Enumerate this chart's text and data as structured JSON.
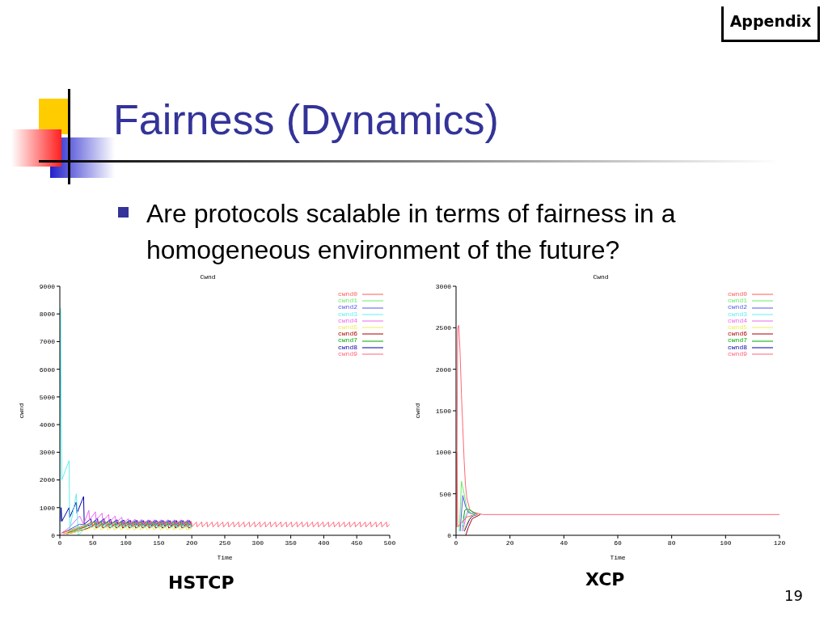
{
  "chart_data": [
    {
      "type": "line",
      "title": "Cwnd",
      "xlabel": "Time",
      "ylabel": "cwnd",
      "xlim": [
        0,
        500
      ],
      "xticks": [
        0,
        50,
        100,
        150,
        200,
        250,
        300,
        350,
        400,
        450,
        500
      ],
      "ylim": [
        0,
        9000
      ],
      "yticks": [
        0,
        1000,
        2000,
        3000,
        4000,
        5000,
        6000,
        7000,
        8000,
        9000
      ],
      "grid": false,
      "legend": "top right",
      "line_style": "solid",
      "annotations": [
        "Appendix",
        "Fairness (Dynamics)",
        "Are protocols scalable in terms of fairness in a homogeneous environment of the future?",
        "HSTCP"
      ],
      "series": [
        {
          "name": "cwnd0",
          "color": "#ff5a5a",
          "x": [
            3,
            20,
            40,
            49,
            50,
            59,
            60,
            69,
            70,
            79,
            80,
            89,
            90,
            99,
            100,
            109,
            110,
            119,
            120,
            129,
            130,
            139,
            140,
            149,
            150,
            159,
            160,
            169,
            170,
            179,
            180,
            189,
            190,
            199,
            200
          ],
          "values": [
            100,
            200,
            350,
            500,
            360,
            500,
            360,
            500,
            360,
            500,
            360,
            500,
            360,
            500,
            360,
            500,
            360,
            500,
            360,
            500,
            360,
            500,
            360,
            500,
            360,
            500,
            360,
            500,
            360,
            500,
            360,
            500,
            360,
            500,
            360
          ]
        },
        {
          "name": "cwnd1",
          "color": "#66ee66",
          "x": [
            6,
            22,
            43,
            52,
            53,
            62,
            63,
            72,
            73,
            82,
            83,
            92,
            93,
            102,
            103,
            112,
            113,
            122,
            123,
            132,
            133,
            142,
            143,
            152,
            153,
            162,
            163,
            172,
            173,
            182,
            183,
            192,
            193,
            200
          ],
          "values": [
            100,
            250,
            420,
            450,
            310,
            450,
            310,
            450,
            310,
            450,
            310,
            450,
            310,
            450,
            310,
            450,
            310,
            450,
            310,
            450,
            310,
            450,
            310,
            450,
            310,
            450,
            310,
            450,
            310,
            450,
            310,
            450,
            310,
            400
          ]
        },
        {
          "name": "cwnd2",
          "color": "#5555ee",
          "x": [
            4,
            10,
            30,
            45,
            55,
            56,
            65,
            66,
            75,
            76,
            85,
            86,
            95,
            96,
            105,
            106,
            115,
            116,
            125,
            126,
            135,
            136,
            145,
            146,
            155,
            156,
            165,
            166,
            175,
            176,
            185,
            186,
            195,
            196,
            200
          ],
          "values": [
            100,
            150,
            400,
            360,
            540,
            380,
            540,
            380,
            540,
            380,
            540,
            380,
            540,
            380,
            540,
            380,
            540,
            380,
            540,
            380,
            540,
            380,
            540,
            380,
            540,
            380,
            540,
            380,
            540,
            380,
            540,
            380,
            540,
            380,
            420
          ]
        },
        {
          "name": "cwnd3",
          "color": "#66eeee",
          "x": [
            0,
            1,
            3,
            14,
            15,
            25,
            28,
            40,
            47,
            48,
            57,
            58,
            67,
            68,
            77,
            78,
            87,
            88,
            97,
            98,
            107,
            108,
            117,
            118,
            127,
            128,
            137,
            138,
            147,
            148,
            157,
            158,
            167,
            168,
            177,
            178,
            187,
            188,
            197,
            198,
            200
          ],
          "values": [
            0,
            8200,
            2000,
            2700,
            200,
            1500,
            0,
            300,
            420,
            280,
            420,
            280,
            420,
            280,
            420,
            280,
            420,
            280,
            420,
            280,
            420,
            280,
            420,
            280,
            420,
            280,
            420,
            280,
            420,
            280,
            420,
            280,
            420,
            280,
            420,
            280,
            420,
            280,
            420,
            280,
            300
          ]
        },
        {
          "name": "cwnd4",
          "color": "#ee66ee",
          "x": [
            2,
            15,
            30,
            36,
            44,
            45,
            54,
            55,
            64,
            65,
            74,
            75,
            84,
            85,
            94,
            95,
            104,
            105,
            114,
            115,
            124,
            125,
            134,
            135,
            144,
            145,
            154,
            155,
            164,
            165,
            174,
            175,
            184,
            185,
            194,
            195,
            200
          ],
          "values": [
            50,
            300,
            700,
            400,
            900,
            550,
            850,
            550,
            800,
            500,
            750,
            480,
            700,
            460,
            650,
            430,
            600,
            400,
            580,
            390,
            570,
            390,
            560,
            390,
            560,
            390,
            560,
            390,
            560,
            390,
            560,
            390,
            560,
            390,
            560,
            390,
            450
          ]
        },
        {
          "name": "cwnd5",
          "color": "#eeee55",
          "x": [
            8,
            20,
            40,
            51,
            52,
            61,
            62,
            71,
            72,
            81,
            82,
            91,
            92,
            101,
            102,
            111,
            112,
            121,
            122,
            131,
            132,
            141,
            142,
            151,
            152,
            161,
            162,
            171,
            172,
            181,
            182,
            191,
            192,
            200
          ],
          "values": [
            50,
            100,
            200,
            300,
            200,
            300,
            200,
            300,
            200,
            300,
            200,
            300,
            200,
            300,
            200,
            300,
            200,
            300,
            200,
            300,
            200,
            300,
            200,
            300,
            200,
            300,
            200,
            300,
            200,
            300,
            200,
            300,
            200,
            250
          ]
        },
        {
          "name": "cwnd6",
          "color": "#aa0000",
          "x": [
            10,
            20,
            35,
            42,
            54,
            55,
            64,
            65,
            74,
            75,
            84,
            85,
            94,
            95,
            104,
            105,
            114,
            115,
            124,
            125,
            134,
            135,
            144,
            145,
            154,
            155,
            164,
            165,
            174,
            175,
            184,
            185,
            194,
            195,
            200
          ],
          "values": [
            50,
            100,
            200,
            250,
            400,
            260,
            400,
            260,
            400,
            260,
            400,
            260,
            400,
            260,
            400,
            260,
            400,
            260,
            400,
            260,
            400,
            260,
            400,
            260,
            400,
            260,
            400,
            260,
            400,
            260,
            400,
            260,
            400,
            260,
            320
          ]
        },
        {
          "name": "cwnd7",
          "color": "#00aa00",
          "x": [
            12,
            20,
            45,
            53,
            54,
            63,
            64,
            73,
            74,
            83,
            84,
            93,
            94,
            103,
            104,
            113,
            114,
            123,
            124,
            133,
            134,
            143,
            144,
            153,
            154,
            163,
            164,
            173,
            174,
            183,
            184,
            193,
            194,
            200
          ],
          "values": [
            100,
            150,
            350,
            490,
            340,
            490,
            340,
            490,
            340,
            490,
            340,
            490,
            340,
            490,
            340,
            490,
            340,
            490,
            340,
            490,
            340,
            490,
            340,
            490,
            340,
            490,
            340,
            490,
            340,
            490,
            340,
            490,
            340,
            380
          ]
        },
        {
          "name": "cwnd8",
          "color": "#0000aa",
          "x": [
            1,
            2,
            3,
            14,
            15,
            25,
            26,
            36,
            37,
            47,
            48,
            57,
            58,
            67,
            68,
            77,
            78,
            87,
            88,
            97,
            98,
            107,
            108,
            117,
            118,
            127,
            128,
            137,
            138,
            147,
            148,
            157,
            158,
            167,
            168,
            177,
            178,
            187,
            188,
            197,
            198,
            200
          ],
          "values": [
            500,
            1000,
            500,
            1000,
            650,
            1200,
            800,
            1400,
            400,
            600,
            400,
            620,
            420,
            600,
            400,
            580,
            400,
            560,
            380,
            550,
            370,
            540,
            360,
            540,
            360,
            530,
            350,
            530,
            350,
            530,
            350,
            530,
            350,
            530,
            350,
            530,
            350,
            530,
            350,
            530,
            350,
            380
          ]
        },
        {
          "name": "cwnd9",
          "color": "#ff6677",
          "x": [
            5,
            20,
            40,
            47,
            48,
            55,
            56,
            63,
            64,
            71,
            72,
            79,
            80,
            87,
            88,
            95,
            96,
            103,
            104,
            111,
            112,
            119,
            120,
            127,
            128,
            135,
            136,
            143,
            144,
            151,
            152,
            159,
            160,
            167,
            168,
            175,
            176,
            183,
            184,
            191,
            192,
            199,
            200,
            207,
            208,
            215,
            216,
            223,
            224,
            231,
            232,
            239,
            240,
            247,
            248,
            255,
            256,
            263,
            264,
            271,
            272,
            279,
            280,
            287,
            288,
            295,
            296,
            303,
            304,
            311,
            312,
            319,
            320,
            327,
            328,
            335,
            336,
            343,
            344,
            351,
            352,
            359,
            360,
            367,
            368,
            375,
            376,
            383,
            384,
            391,
            392,
            399,
            400,
            407,
            408,
            415,
            416,
            423,
            424,
            431,
            432,
            439,
            440,
            447,
            448,
            455,
            456,
            463,
            464,
            471,
            472,
            479,
            480,
            487,
            488,
            495,
            496,
            500
          ],
          "values": [
            50,
            150,
            330,
            480,
            300,
            480,
            300,
            480,
            300,
            480,
            300,
            480,
            300,
            480,
            300,
            480,
            300,
            480,
            300,
            480,
            300,
            480,
            300,
            480,
            300,
            480,
            300,
            480,
            300,
            480,
            300,
            480,
            300,
            480,
            300,
            480,
            300,
            480,
            300,
            480,
            300,
            480,
            300,
            480,
            300,
            480,
            300,
            480,
            300,
            480,
            300,
            480,
            300,
            480,
            300,
            480,
            300,
            480,
            300,
            480,
            300,
            480,
            300,
            480,
            300,
            480,
            300,
            480,
            300,
            480,
            300,
            480,
            300,
            480,
            300,
            480,
            300,
            480,
            300,
            480,
            300,
            480,
            300,
            480,
            300,
            480,
            300,
            480,
            300,
            480,
            300,
            480,
            300,
            480,
            300,
            480,
            300,
            480,
            300,
            480,
            300,
            480,
            300,
            480,
            300,
            480,
            300,
            480,
            300,
            480,
            300,
            480,
            300,
            480,
            300,
            480,
            300,
            400
          ]
        }
      ]
    },
    {
      "type": "line",
      "title": "Cwnd",
      "xlabel": "Time",
      "ylabel": "cwnd",
      "xlim": [
        0,
        120
      ],
      "xticks": [
        0,
        20,
        40,
        60,
        80,
        100,
        120
      ],
      "ylim": [
        0,
        3000
      ],
      "yticks": [
        0,
        500,
        1000,
        1500,
        2000,
        2500,
        3000
      ],
      "grid": false,
      "legend": "top right",
      "line_style": "solid",
      "annotations": [
        "XCP",
        "19"
      ],
      "series": [
        {
          "name": "cwnd0",
          "color": "#ff5a5a",
          "x": [
            0.3,
            0.6,
            2,
            4,
            6
          ],
          "values": [
            1000,
            100,
            150,
            220,
            240
          ]
        },
        {
          "name": "cwnd1",
          "color": "#66ee66",
          "x": [
            1.2,
            2,
            3,
            4,
            5,
            6.5
          ],
          "values": [
            50,
            650,
            500,
            330,
            270,
            250
          ]
        },
        {
          "name": "cwnd2",
          "color": "#5555ee",
          "x": [
            1.5,
            2.5,
            3.5,
            4.5,
            5.5,
            7
          ],
          "values": [
            50,
            480,
            350,
            280,
            260,
            250
          ]
        },
        {
          "name": "cwnd3",
          "color": "#66eeee",
          "x": [
            2,
            3,
            4,
            5,
            7.5
          ],
          "values": [
            50,
            200,
            260,
            270,
            250
          ]
        },
        {
          "name": "cwnd4",
          "color": "#ee66ee",
          "x": [
            2.5,
            3.5,
            4.5,
            5.5,
            8
          ],
          "values": [
            50,
            200,
            300,
            270,
            250
          ]
        },
        {
          "name": "cwnd5",
          "color": "#eeee55",
          "x": [
            2.8,
            4,
            5,
            6,
            8.5
          ],
          "values": [
            50,
            150,
            210,
            240,
            250
          ]
        },
        {
          "name": "cwnd6",
          "color": "#aa0000",
          "x": [
            3.6,
            4.6,
            6,
            9
          ],
          "values": [
            0,
            100,
            200,
            250
          ]
        },
        {
          "name": "cwnd7",
          "color": "#00aa00",
          "x": [
            2.4,
            3.2,
            4.2,
            8
          ],
          "values": [
            100,
            300,
            320,
            250
          ]
        },
        {
          "name": "cwnd8",
          "color": "#0000aa",
          "x": [
            3.1,
            4,
            5,
            6,
            8
          ],
          "values": [
            50,
            120,
            190,
            230,
            250
          ]
        },
        {
          "name": "cwnd9",
          "color": "#ff6677",
          "x": [
            0.2,
            0.6,
            1,
            1.5,
            2,
            2.5,
            3,
            3.5,
            4,
            5,
            6,
            10,
            120
          ],
          "values": [
            100,
            2500,
            2530,
            2200,
            1700,
            1300,
            900,
            600,
            450,
            320,
            280,
            250,
            250
          ]
        }
      ]
    }
  ]
}
